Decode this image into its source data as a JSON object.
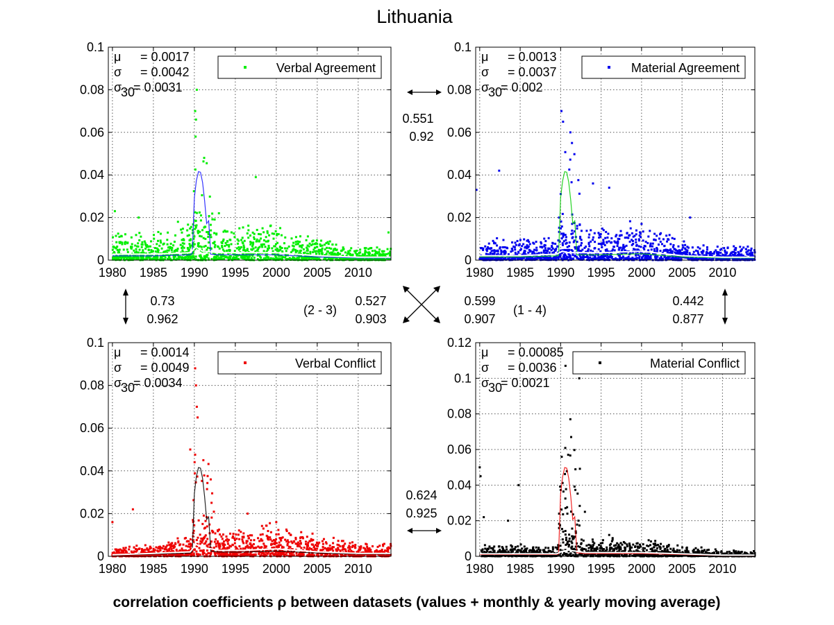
{
  "title": "Lithuania",
  "caption": "correlation coefficients ρ between datasets (values + monthly & yearly moving average)",
  "chart_data": [
    {
      "type": "scatter",
      "legend": "Verbal Agreement",
      "color": "#00ee00",
      "stats": {
        "mu": "= 0.0017",
        "sigma": "= 0.0042",
        "sigma30": "= 0.0031"
      },
      "xlim": [
        1979.5,
        2014
      ],
      "ylim": [
        0,
        0.1
      ],
      "xticks": [
        "1980",
        "1985",
        "1990",
        "1995",
        "2000",
        "2005",
        "2010"
      ],
      "yticks": [
        "0",
        "0.02",
        "0.04",
        "0.06",
        "0.08",
        "0.1"
      ],
      "spikes": [
        [
          1990.1,
          0.07
        ],
        [
          1990.2,
          0.066
        ],
        [
          1990.3,
          0.08
        ],
        [
          1990.15,
          0.058
        ],
        [
          1991.2,
          0.048
        ],
        [
          1997.5,
          0.039
        ],
        [
          1980.3,
          0.023
        ],
        [
          1983.2,
          0.02
        ],
        [
          1993,
          0.022
        ],
        [
          1988,
          0.018
        ],
        [
          2013.7,
          0.013
        ]
      ],
      "baseline": [
        [
          1980,
          0.004
        ],
        [
          1985,
          0.004
        ],
        [
          1989.5,
          0.005
        ],
        [
          1990.2,
          0.009
        ],
        [
          1991,
          0.006
        ],
        [
          1993,
          0.005
        ],
        [
          1996,
          0.005
        ],
        [
          2000,
          0.005
        ],
        [
          2005,
          0.003
        ],
        [
          2010,
          0.002
        ],
        [
          2014,
          0.002
        ]
      ],
      "overlay_color": "#1010ff"
    },
    {
      "type": "scatter",
      "legend": "Material Agreement",
      "color": "#0000ee",
      "stats": {
        "mu": "= 0.0013",
        "sigma": "= 0.0037",
        "sigma30": "= 0.002"
      },
      "xlim": [
        1979.5,
        2014
      ],
      "ylim": [
        0,
        0.1
      ],
      "xticks": [
        "1980",
        "1985",
        "1990",
        "1995",
        "2000",
        "2005",
        "2010"
      ],
      "yticks": [
        "0",
        "0.02",
        "0.04",
        "0.06",
        "0.08",
        "0.1"
      ],
      "spikes": [
        [
          1990.1,
          0.07
        ],
        [
          1990.3,
          0.065
        ],
        [
          1991.2,
          0.06
        ],
        [
          1991.4,
          0.055
        ],
        [
          1982.4,
          0.042
        ],
        [
          1979.6,
          0.033
        ],
        [
          1994,
          0.036
        ],
        [
          1996,
          0.034
        ],
        [
          2006,
          0.02
        ],
        [
          2000,
          0.017
        ]
      ],
      "baseline": [
        [
          1980,
          0.003
        ],
        [
          1985,
          0.003
        ],
        [
          1989.5,
          0.004
        ],
        [
          1990.2,
          0.006
        ],
        [
          1991,
          0.005
        ],
        [
          1995,
          0.005
        ],
        [
          2000,
          0.006
        ],
        [
          2005,
          0.003
        ],
        [
          2010,
          0.002
        ],
        [
          2014,
          0.002
        ]
      ],
      "overlay_color": "#00cc00"
    },
    {
      "type": "scatter",
      "legend": "Verbal Conflict",
      "color": "#ee0000",
      "stats": {
        "mu": "= 0.0014",
        "sigma": "= 0.0049",
        "sigma30": "= 0.0034"
      },
      "xlim": [
        1979.5,
        2014
      ],
      "ylim": [
        0,
        0.1
      ],
      "xticks": [
        "1980",
        "1985",
        "1990",
        "1995",
        "2000",
        "2005",
        "2010"
      ],
      "yticks": [
        "0",
        "0.02",
        "0.04",
        "0.06",
        "0.08",
        "0.1"
      ],
      "spikes": [
        [
          1990.1,
          0.088
        ],
        [
          1990.2,
          0.08
        ],
        [
          1990.3,
          0.07
        ],
        [
          1990.4,
          0.065
        ],
        [
          1989.5,
          0.05
        ],
        [
          1991.1,
          0.045
        ],
        [
          1992,
          0.036
        ],
        [
          1996.5,
          0.02
        ],
        [
          1980,
          0.016
        ],
        [
          1982.5,
          0.022
        ],
        [
          2000,
          0.016
        ]
      ],
      "baseline": [
        [
          1980,
          0.001
        ],
        [
          1985,
          0.002
        ],
        [
          1989.5,
          0.003
        ],
        [
          1990.2,
          0.008
        ],
        [
          1991,
          0.006
        ],
        [
          1993,
          0.004
        ],
        [
          1996,
          0.004
        ],
        [
          2000,
          0.005
        ],
        [
          2005,
          0.003
        ],
        [
          2010,
          0.002
        ],
        [
          2014,
          0.002
        ]
      ],
      "overlay_color": "#000000"
    },
    {
      "type": "scatter",
      "legend": "Material Conflict",
      "color": "#000000",
      "stats": {
        "mu": "= 0.00085",
        "sigma": "= 0.0036",
        "sigma30": "= 0.0021"
      },
      "xlim": [
        1979.5,
        2014
      ],
      "ylim": [
        0,
        0.12
      ],
      "xticks": [
        "1980",
        "1985",
        "1990",
        "1995",
        "2000",
        "2005",
        "2010"
      ],
      "yticks": [
        "0",
        "0.02",
        "0.04",
        "0.06",
        "0.08",
        "0.1",
        "0.12"
      ],
      "spikes": [
        [
          1990.6,
          0.107
        ],
        [
          1992.3,
          0.1
        ],
        [
          1991.2,
          0.077
        ],
        [
          1991.3,
          0.067
        ],
        [
          1980,
          0.05
        ],
        [
          1980.1,
          0.045
        ],
        [
          1984.8,
          0.04
        ],
        [
          1980.5,
          0.022
        ],
        [
          1983.5,
          0.02
        ],
        [
          1993,
          0.025
        ],
        [
          1996,
          0.012
        ]
      ],
      "baseline": [
        [
          1980,
          0.002
        ],
        [
          1985,
          0.002
        ],
        [
          1989.5,
          0.002
        ],
        [
          1990.2,
          0.004
        ],
        [
          1991,
          0.005
        ],
        [
          1993,
          0.003
        ],
        [
          1996,
          0.003
        ],
        [
          2000,
          0.003
        ],
        [
          2005,
          0.002
        ],
        [
          2010,
          0.001
        ],
        [
          2014,
          0.001
        ]
      ],
      "overlay_color": "#ee0000"
    }
  ],
  "correlations": {
    "top": [
      "0.551",
      "0.92"
    ],
    "left": [
      "0.73",
      "0.962"
    ],
    "right": [
      "0.442",
      "0.877"
    ],
    "bottom": [
      "0.624",
      "0.925"
    ],
    "diag_23": [
      "0.527",
      "0.903"
    ],
    "diag_14": [
      "0.599",
      "0.907"
    ],
    "label_23": "(2 - 3)",
    "label_14": "(1 - 4)"
  }
}
